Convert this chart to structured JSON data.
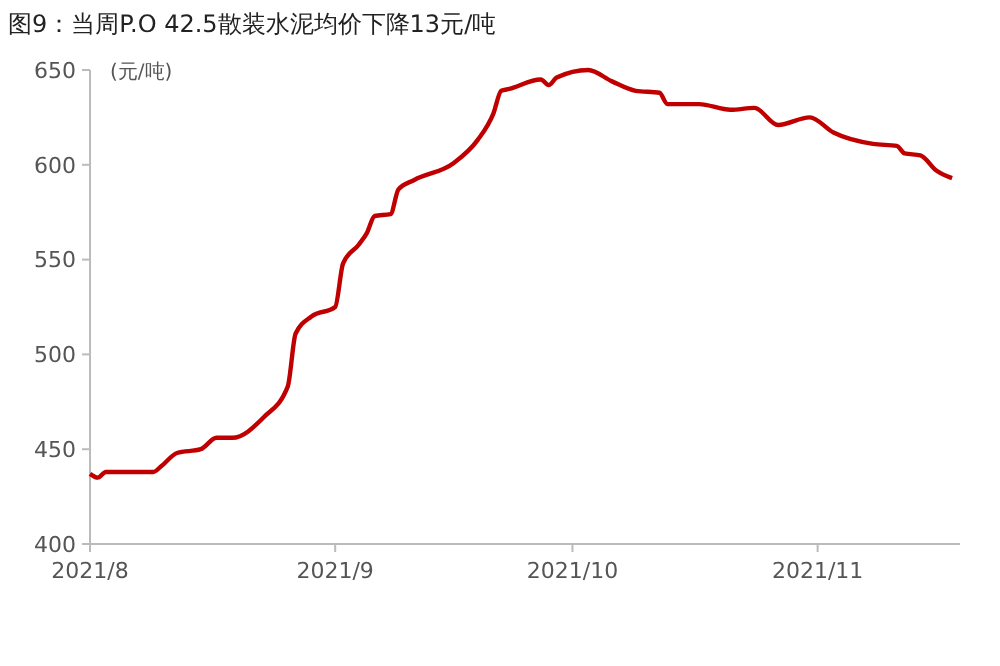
{
  "chart_data": {
    "type": "line",
    "title": "图9：当周P.O 42.5散装水泥均价下降13元/吨",
    "ylabel": "(元/吨)",
    "x": [
      "2021-08-01",
      "2021-08-02",
      "2021-08-03",
      "2021-08-09",
      "2021-08-10",
      "2021-08-12",
      "2021-08-15",
      "2021-08-17",
      "2021-08-19",
      "2021-08-23",
      "2021-08-26",
      "2021-08-27",
      "2021-08-29",
      "2021-09-01",
      "2021-09-02",
      "2021-09-04",
      "2021-09-05",
      "2021-09-06",
      "2021-09-08",
      "2021-09-09",
      "2021-09-11",
      "2021-09-16",
      "2021-09-19",
      "2021-09-21",
      "2021-09-22",
      "2021-09-23",
      "2021-09-27",
      "2021-09-28",
      "2021-09-29",
      "2021-10-03",
      "2021-10-06",
      "2021-10-09",
      "2021-10-12",
      "2021-10-13",
      "2021-10-17",
      "2021-10-21",
      "2021-10-24",
      "2021-10-27",
      "2021-10-31",
      "2021-11-03",
      "2021-11-08",
      "2021-11-11",
      "2021-11-12",
      "2021-11-14",
      "2021-11-16",
      "2021-11-18"
    ],
    "series": [
      {
        "color": "#c00000",
        "values": [
          437,
          435,
          438,
          438,
          441,
          448,
          450,
          456,
          456,
          467,
          483,
          511,
          520,
          525,
          548,
          558,
          564,
          573,
          574,
          587,
          592,
          601,
          613,
          627,
          639,
          640,
          645,
          642,
          646,
          650,
          644,
          639,
          638,
          632,
          632,
          629,
          630,
          621,
          625,
          617,
          611,
          610,
          606,
          605,
          597,
          593
        ]
      }
    ],
    "xlim": [
      "2021-08-01",
      "2021-11-19"
    ],
    "xticks": [
      {
        "value": "2021-08-01",
        "label": "2021/8"
      },
      {
        "value": "2021-09-01",
        "label": "2021/9"
      },
      {
        "value": "2021-10-01",
        "label": "2021/10"
      },
      {
        "value": "2021-11-01",
        "label": "2021/11"
      }
    ],
    "ylim": [
      400,
      650
    ],
    "yticks": [
      400,
      450,
      500,
      550,
      600,
      650
    ],
    "grid": false,
    "marker": "none",
    "line_style": "solid"
  }
}
